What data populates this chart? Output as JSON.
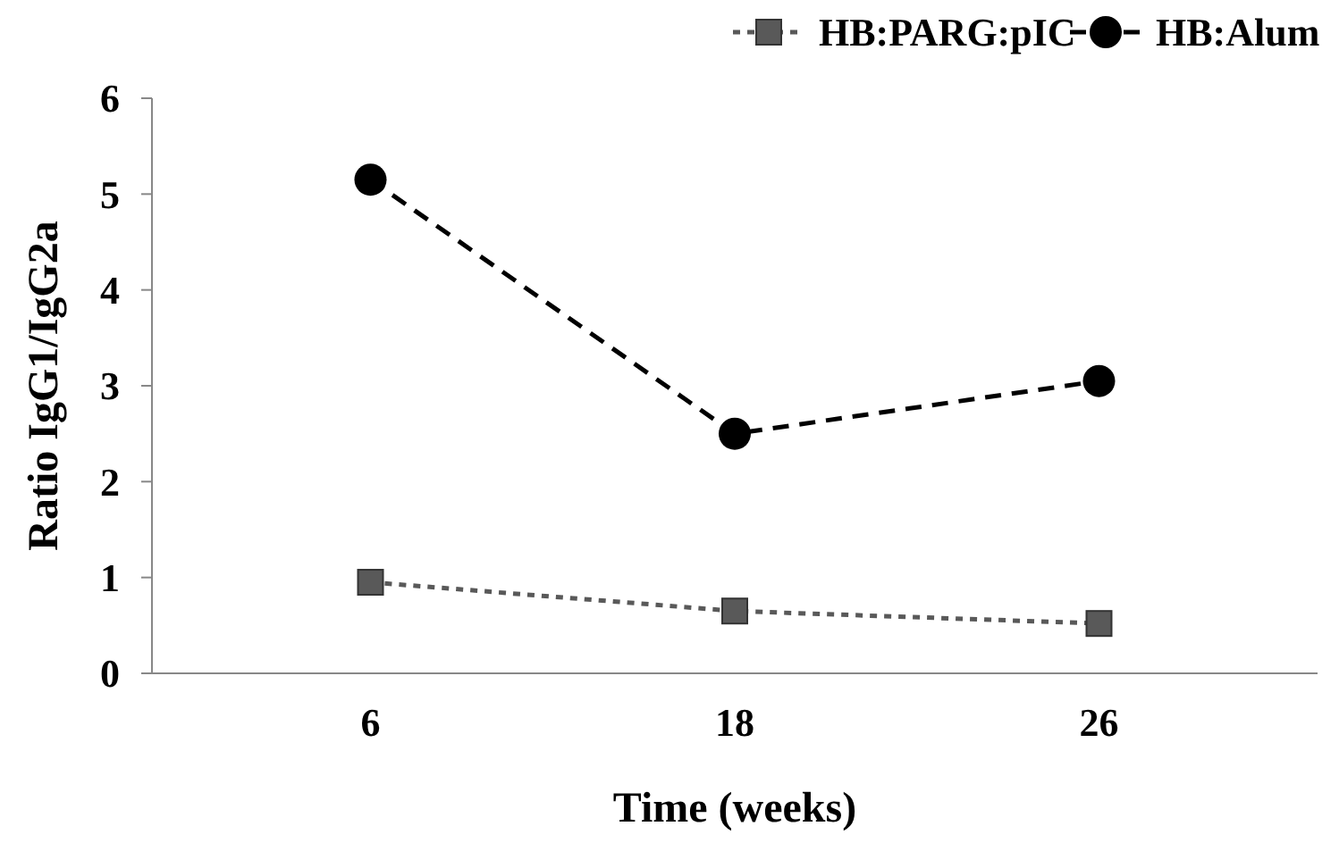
{
  "chart_data": {
    "type": "line",
    "xlabel": "Time (weeks)",
    "ylabel": "Ratio IgG1/IgG2a",
    "categories": [
      "6",
      "18",
      "26"
    ],
    "series": [
      {
        "name": "HB:PARG:pIC",
        "color": "#595959",
        "values": [
          0.95,
          0.65,
          0.52
        ],
        "marker": "square",
        "line_style": "dotted"
      },
      {
        "name": "HB:Alum",
        "color": "#000000",
        "values": [
          5.15,
          2.5,
          3.05
        ],
        "marker": "circle",
        "line_style": "dashed"
      }
    ],
    "ylim": [
      0,
      6
    ],
    "yticks": [
      0,
      1,
      2,
      3,
      4,
      5,
      6
    ],
    "grid": false,
    "legend": "top right"
  }
}
